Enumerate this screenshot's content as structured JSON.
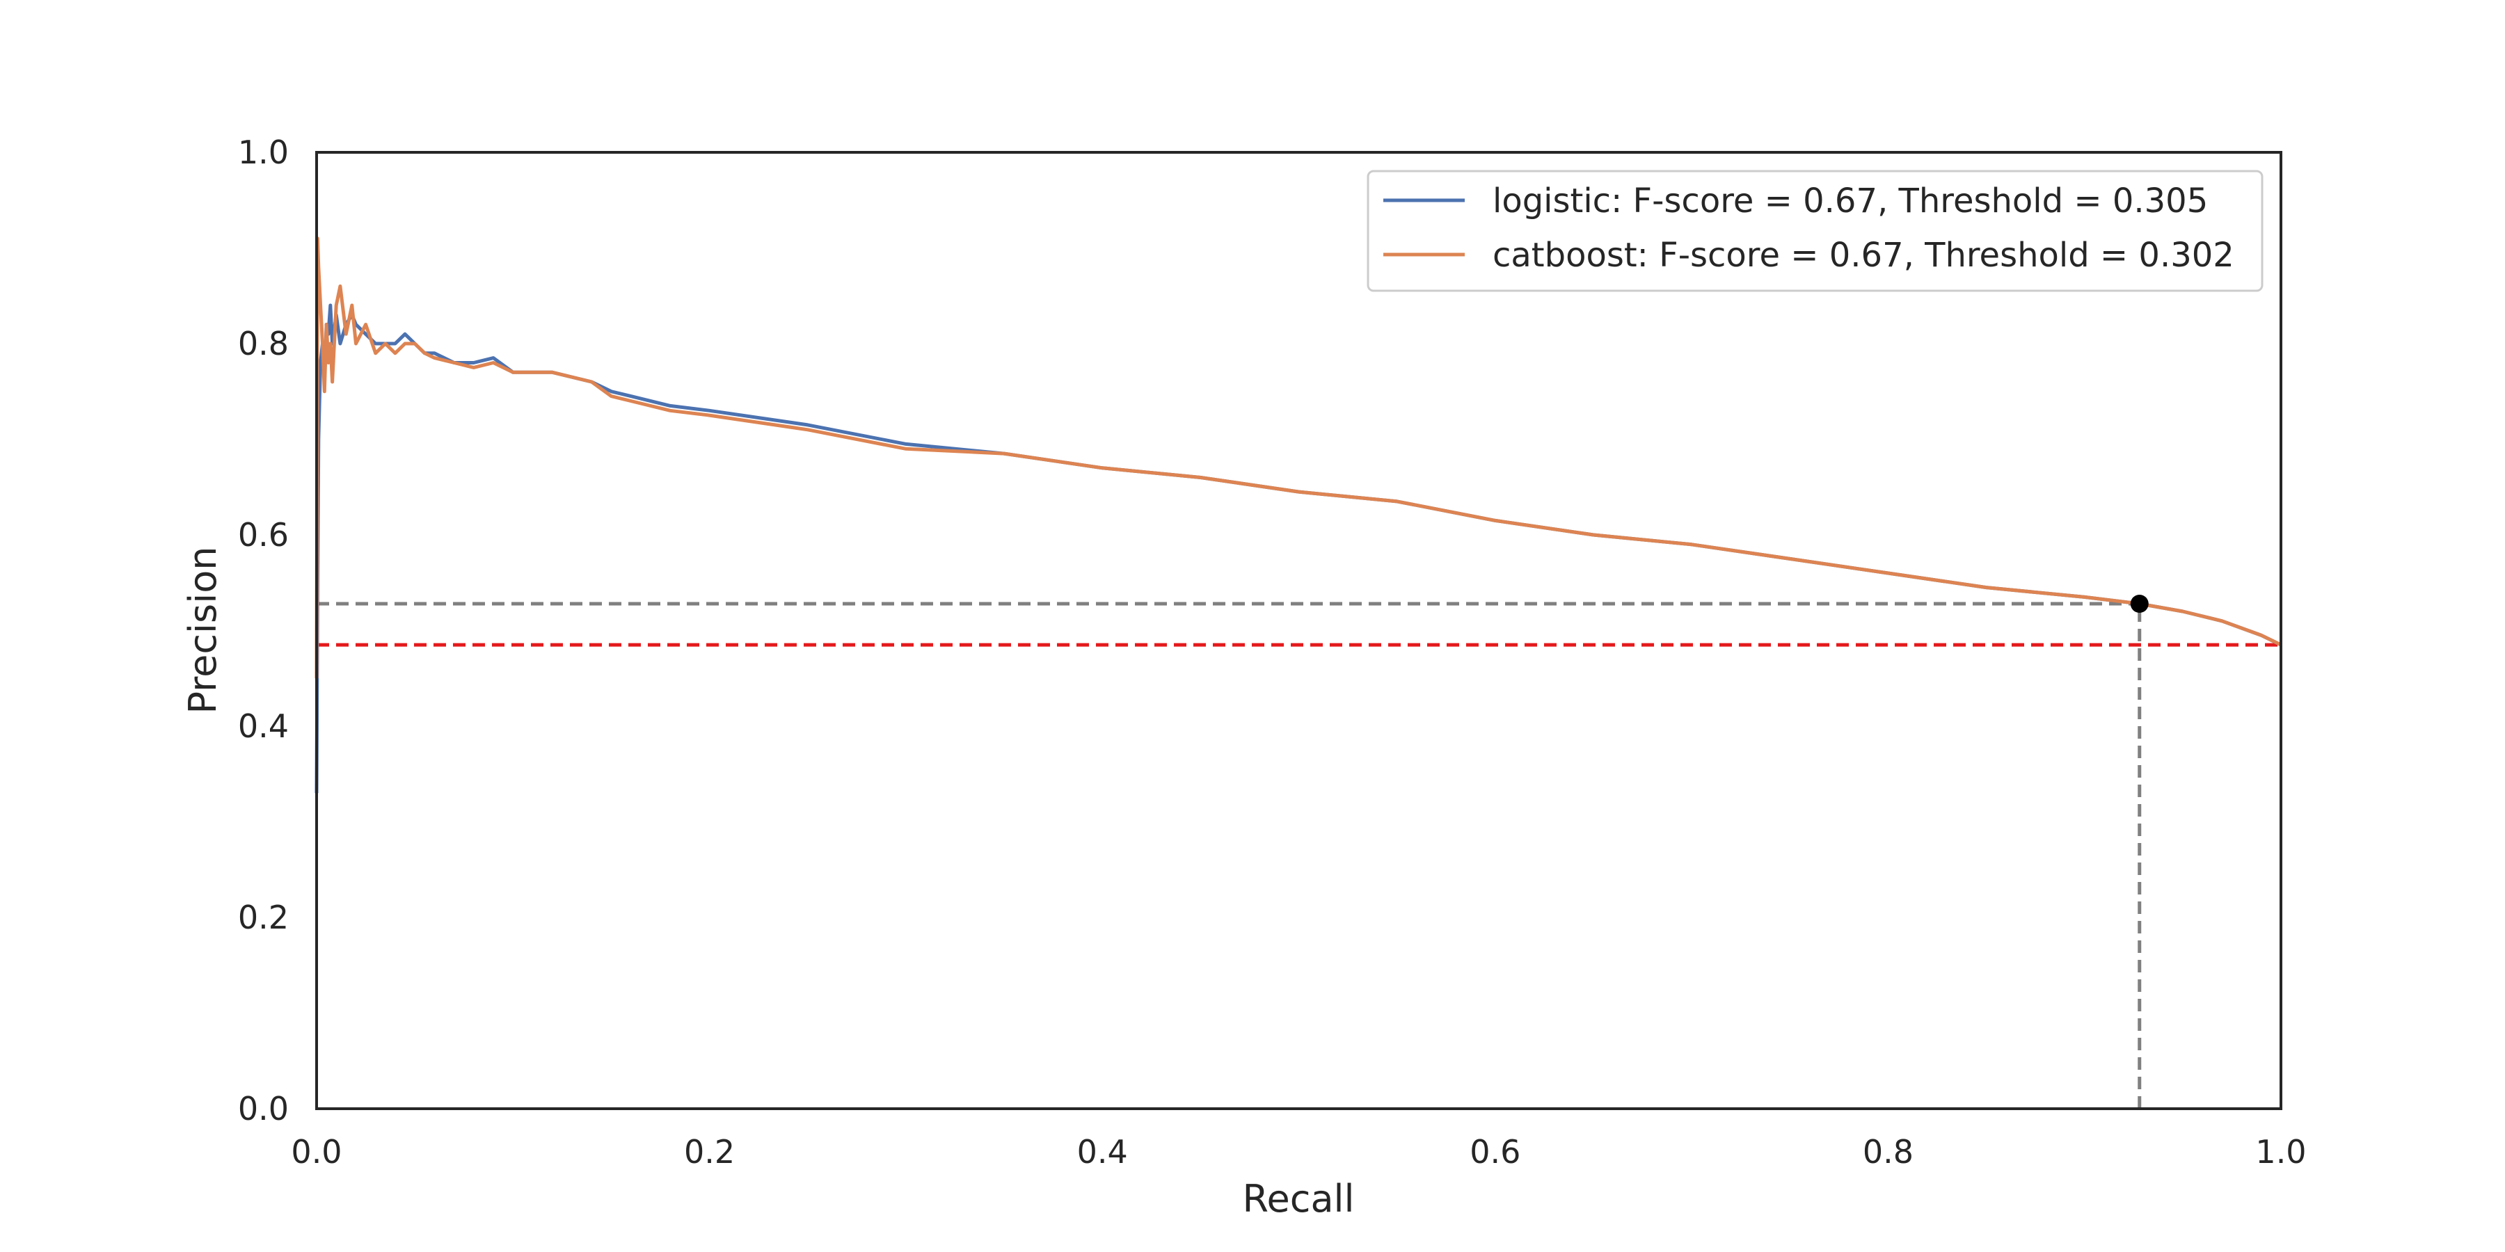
{
  "chart_data": {
    "type": "line",
    "title": "",
    "xlabel": "Recall",
    "ylabel": "Precision",
    "xlim": [
      0.0,
      1.0
    ],
    "ylim": [
      0.0,
      1.0
    ],
    "xticks": [
      "0.0",
      "0.2",
      "0.4",
      "0.6",
      "0.8",
      "1.0"
    ],
    "yticks": [
      "0.0",
      "0.2",
      "0.4",
      "0.6",
      "0.8",
      "1.0"
    ],
    "grid": false,
    "legend_position": "top-right",
    "series": [
      {
        "name": "logistic: F-score = 0.67, Threshold = 0.305",
        "color": "#4c72b0",
        "x": [
          0.0,
          0.0005,
          0.001,
          0.002,
          0.003,
          0.004,
          0.005,
          0.006,
          0.007,
          0.008,
          0.01,
          0.012,
          0.015,
          0.018,
          0.02,
          0.025,
          0.03,
          0.035,
          0.04,
          0.045,
          0.05,
          0.055,
          0.06,
          0.07,
          0.08,
          0.09,
          0.1,
          0.12,
          0.14,
          0.15,
          0.16,
          0.18,
          0.2,
          0.25,
          0.3,
          0.35,
          0.4,
          0.45,
          0.5,
          0.55,
          0.6,
          0.65,
          0.7,
          0.75,
          0.8,
          0.85,
          0.9,
          0.928,
          0.95,
          0.97,
          0.99,
          1.0
        ],
        "y": [
          0.33,
          0.55,
          0.7,
          0.78,
          0.8,
          0.76,
          0.82,
          0.81,
          0.84,
          0.8,
          0.83,
          0.8,
          0.82,
          0.83,
          0.82,
          0.81,
          0.8,
          0.8,
          0.8,
          0.81,
          0.8,
          0.79,
          0.79,
          0.78,
          0.78,
          0.785,
          0.77,
          0.77,
          0.76,
          0.75,
          0.745,
          0.735,
          0.73,
          0.715,
          0.695,
          0.685,
          0.67,
          0.66,
          0.645,
          0.635,
          0.615,
          0.6,
          0.59,
          0.575,
          0.56,
          0.545,
          0.535,
          0.528,
          0.52,
          0.51,
          0.495,
          0.485
        ]
      },
      {
        "name": "catboost: F-score = 0.67, Threshold = 0.302",
        "color": "#dd8452",
        "x": [
          0.0,
          0.0005,
          0.001,
          0.002,
          0.003,
          0.004,
          0.005,
          0.006,
          0.007,
          0.008,
          0.01,
          0.012,
          0.015,
          0.018,
          0.02,
          0.025,
          0.03,
          0.035,
          0.04,
          0.045,
          0.05,
          0.055,
          0.06,
          0.07,
          0.08,
          0.09,
          0.1,
          0.12,
          0.14,
          0.15,
          0.16,
          0.18,
          0.2,
          0.25,
          0.3,
          0.35,
          0.4,
          0.45,
          0.5,
          0.55,
          0.6,
          0.65,
          0.7,
          0.75,
          0.8,
          0.85,
          0.9,
          0.928,
          0.95,
          0.97,
          0.99,
          1.0
        ],
        "y": [
          0.45,
          0.91,
          0.88,
          0.84,
          0.8,
          0.75,
          0.82,
          0.78,
          0.8,
          0.76,
          0.84,
          0.86,
          0.81,
          0.84,
          0.8,
          0.82,
          0.79,
          0.8,
          0.79,
          0.8,
          0.8,
          0.79,
          0.785,
          0.78,
          0.775,
          0.78,
          0.77,
          0.77,
          0.76,
          0.745,
          0.74,
          0.73,
          0.725,
          0.71,
          0.69,
          0.685,
          0.67,
          0.66,
          0.645,
          0.635,
          0.615,
          0.6,
          0.59,
          0.575,
          0.56,
          0.545,
          0.535,
          0.528,
          0.52,
          0.51,
          0.495,
          0.485
        ]
      }
    ],
    "reference_lines": [
      {
        "orientation": "horizontal",
        "value": 0.485,
        "color": "#e41a1c",
        "style": "dashed"
      },
      {
        "orientation": "horizontal",
        "value": 0.528,
        "color": "#808080",
        "style": "dashed",
        "x_end": 0.928
      },
      {
        "orientation": "vertical",
        "value": 0.928,
        "color": "#808080",
        "style": "dashed",
        "y_end": 0.528
      }
    ],
    "markers": [
      {
        "x": 0.928,
        "y": 0.528,
        "color": "#000000"
      }
    ]
  }
}
